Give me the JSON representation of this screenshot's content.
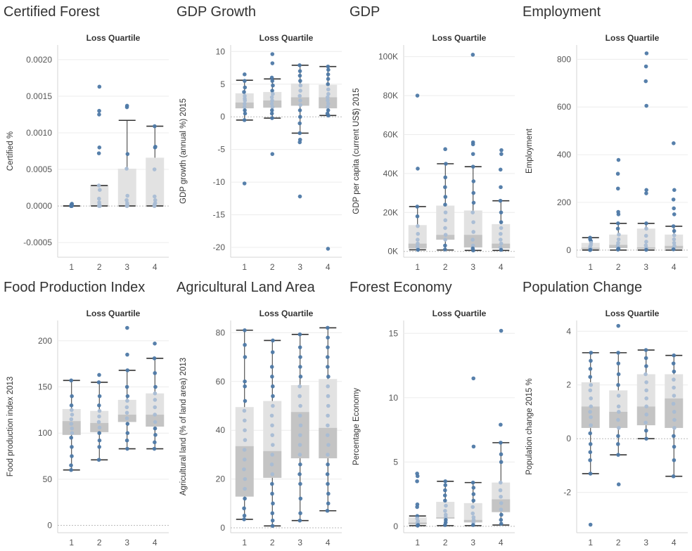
{
  "chart_data": [
    {
      "type": "box",
      "title": "Certified Forest",
      "column_header": "Loss Quartile",
      "xlabel": "",
      "ylabel": "Certified %",
      "categories": [
        "1",
        "2",
        "3",
        "4"
      ],
      "ylim": [
        -0.0007,
        0.0022
      ],
      "yticks": [
        -0.0005,
        0.0,
        0.0005,
        0.001,
        0.0015,
        0.002
      ],
      "ytick_labels": [
        "-0.0005",
        "0.0000",
        "0.0005",
        "0.0010",
        "0.0015",
        "0.0020"
      ],
      "boxes": [
        {
          "whisker_low": 0.0,
          "q1": 0.0,
          "median": 0.0,
          "q3": 0.0,
          "whisker_high": 0.0
        },
        {
          "whisker_low": 0.0,
          "q1": 0.0,
          "median": 0.0,
          "q3": 0.00028,
          "whisker_high": 0.00028
        },
        {
          "whisker_low": 0.0,
          "q1": 0.0,
          "median": 0.0,
          "q3": 0.00051,
          "whisker_high": 0.00117
        },
        {
          "whisker_low": 0.0,
          "q1": 0.0,
          "median": 0.0,
          "q3": 0.00066,
          "whisker_high": 0.00109
        }
      ],
      "points": [
        [
          0.0,
          0.0,
          2e-05,
          3e-05,
          0.0,
          1e-05
        ],
        [
          0.00163,
          0.0013,
          0.00125,
          0.0008,
          0.00072,
          0.00028,
          0.00022,
          0.0001,
          5e-05,
          0.0,
          0.0,
          2e-05
        ],
        [
          0.00137,
          0.00135,
          0.00071,
          0.00051,
          0.00014,
          8e-05,
          4e-05,
          0.0,
          0.0,
          1e-05
        ],
        [
          0.00109,
          0.00081,
          0.0008,
          0.0005,
          0.00013,
          8e-05,
          4e-05,
          0.0,
          0.0,
          2e-05
        ]
      ]
    },
    {
      "type": "box",
      "title": "GDP Growth",
      "column_header": "Loss Quartile",
      "xlabel": "",
      "ylabel": "GDP growth (annual %) 2015",
      "categories": [
        "1",
        "2",
        "3",
        "4"
      ],
      "ylim": [
        -21.5,
        11
      ],
      "yticks": [
        -20,
        -15,
        -10,
        -5,
        0,
        5,
        10
      ],
      "ytick_labels": [
        "-20",
        "-15",
        "-10",
        "-5",
        "0",
        "5",
        "10"
      ],
      "boxes": [
        {
          "whisker_low": -0.5,
          "q1": 1.3,
          "median": 2.2,
          "q3": 3.6,
          "whisker_high": 5.6
        },
        {
          "whisker_low": -0.2,
          "q1": 1.4,
          "median": 2.5,
          "q3": 3.8,
          "whisker_high": 5.8
        },
        {
          "whisker_low": -2.5,
          "q1": 1.7,
          "median": 3.0,
          "q3": 5.1,
          "whisker_high": 7.9
        },
        {
          "whisker_low": 0.2,
          "q1": 1.3,
          "median": 3.0,
          "q3": 4.9,
          "whisker_high": 7.7
        }
      ],
      "points": [
        [
          6.5,
          5.5,
          4.5,
          3.8,
          3.2,
          2.8,
          2.5,
          2.0,
          1.5,
          1.0,
          0.5,
          -0.5,
          -10.2
        ],
        [
          9.6,
          8.2,
          6.0,
          5.5,
          4.8,
          4.0,
          3.5,
          3.0,
          2.5,
          2.0,
          1.5,
          1.0,
          0.5,
          -0.2,
          -5.7
        ],
        [
          7.9,
          7.0,
          6.3,
          5.5,
          4.8,
          4.0,
          3.2,
          2.5,
          1.8,
          1.0,
          0.0,
          -1.0,
          -2.5,
          -3.5,
          -3.9,
          -12.2
        ],
        [
          7.7,
          7.2,
          6.5,
          5.8,
          5.0,
          4.2,
          3.5,
          3.0,
          2.5,
          2.0,
          1.5,
          1.0,
          0.5,
          0.2,
          -20.2
        ]
      ]
    },
    {
      "type": "box",
      "title": "GDP",
      "column_header": "Loss Quartile",
      "xlabel": "",
      "ylabel": "GDP per capita (current US$) 2015",
      "categories": [
        "1",
        "2",
        "3",
        "4"
      ],
      "ylim": [
        -3000,
        106000
      ],
      "yticks": [
        0,
        20000,
        40000,
        60000,
        80000,
        100000
      ],
      "ytick_labels": [
        "0K",
        "20K",
        "40K",
        "60K",
        "80K",
        "100K"
      ],
      "boxes": [
        {
          "whisker_low": 800,
          "q1": 1500,
          "median": 4000,
          "q3": 13500,
          "whisker_high": 23000
        },
        {
          "whisker_low": 700,
          "q1": 6000,
          "median": 8500,
          "q3": 23500,
          "whisker_high": 45000
        },
        {
          "whisker_low": 500,
          "q1": 2000,
          "median": 8500,
          "q3": 21000,
          "whisker_high": 43500
        },
        {
          "whisker_low": 500,
          "q1": 1500,
          "median": 4000,
          "q3": 14000,
          "whisker_high": 26000
        }
      ],
      "points": [
        [
          80000,
          42500,
          23000,
          18000,
          13000,
          9000,
          6000,
          4000,
          2500,
          1500,
          800
        ],
        [
          52500,
          45000,
          38000,
          33000,
          28000,
          24000,
          20000,
          16000,
          12000,
          8500,
          6000,
          3000,
          1000
        ],
        [
          101000,
          56000,
          55000,
          50000,
          43500,
          36000,
          30000,
          25000,
          20000,
          15000,
          10000,
          6000,
          3000,
          1500,
          500
        ],
        [
          52000,
          50000,
          42000,
          33000,
          26000,
          20000,
          15000,
          12000,
          9000,
          6000,
          4000,
          2000,
          800
        ]
      ]
    },
    {
      "type": "box",
      "title": "Employment",
      "column_header": "Loss Quartile",
      "xlabel": "",
      "ylabel": "Employment",
      "categories": [
        "1",
        "2",
        "3",
        "4"
      ],
      "ylim": [
        -30,
        860
      ],
      "yticks": [
        0,
        200,
        400,
        600,
        800
      ],
      "ytick_labels": [
        "0",
        "200",
        "400",
        "600",
        "800"
      ],
      "boxes": [
        {
          "whisker_low": 0,
          "q1": 3,
          "median": 10,
          "q3": 30,
          "whisker_high": 52
        },
        {
          "whisker_low": 0,
          "q1": 8,
          "median": 22,
          "q3": 65,
          "whisker_high": 112
        },
        {
          "whisker_low": 0,
          "q1": 4,
          "median": 12,
          "q3": 90,
          "whisker_high": 112
        },
        {
          "whisker_low": 0,
          "q1": 5,
          "median": 18,
          "q3": 65,
          "whisker_high": 100
        }
      ],
      "points": [
        [
          52,
          45,
          38,
          30,
          22,
          15,
          10,
          6,
          3,
          1,
          0
        ],
        [
          378,
          320,
          258,
          160,
          150,
          112,
          90,
          65,
          45,
          30,
          20,
          12,
          6,
          2
        ],
        [
          825,
          770,
          708,
          605,
          252,
          238,
          112,
          90,
          60,
          35,
          20,
          10,
          4,
          1
        ],
        [
          448,
          252,
          212,
          175,
          150,
          100,
          80,
          62,
          45,
          30,
          18,
          8,
          3
        ]
      ]
    },
    {
      "type": "box",
      "title": "Food Production Index",
      "column_header": "Loss Quartile",
      "xlabel": "",
      "ylabel": "Food production index 2013",
      "categories": [
        "1",
        "2",
        "3",
        "4"
      ],
      "ylim": [
        -8,
        222
      ],
      "yticks": [
        0,
        50,
        100,
        150,
        200
      ],
      "ytick_labels": [
        "0",
        "50",
        "100",
        "150",
        "200"
      ],
      "boxes": [
        {
          "whisker_low": 60,
          "q1": 98,
          "median": 113,
          "q3": 126,
          "whisker_high": 157
        },
        {
          "whisker_low": 71,
          "q1": 101,
          "median": 111,
          "q3": 124,
          "whisker_high": 155
        },
        {
          "whisker_low": 83,
          "q1": 112,
          "median": 120,
          "q3": 136,
          "whisker_high": 168
        },
        {
          "whisker_low": 83,
          "q1": 107,
          "median": 120,
          "q3": 143,
          "whisker_high": 181
        }
      ],
      "points": [
        [
          157,
          140,
          130,
          125,
          120,
          115,
          110,
          105,
          100,
          95,
          85,
          75,
          65,
          60
        ],
        [
          163,
          155,
          140,
          130,
          124,
          118,
          112,
          106,
          100,
          92,
          85,
          71
        ],
        [
          214,
          185,
          168,
          150,
          140,
          135,
          128,
          122,
          116,
          110,
          100,
          92,
          83
        ],
        [
          197,
          181,
          165,
          150,
          143,
          136,
          128,
          120,
          112,
          105,
          98,
          90,
          83
        ]
      ]
    },
    {
      "type": "box",
      "title": "Agricultural Land Area",
      "column_header": "Loss Quartile",
      "xlabel": "",
      "ylabel": "Agricultural land (% of land area) 2013",
      "categories": [
        "1",
        "2",
        "3",
        "4"
      ],
      "ylim": [
        -2,
        85
      ],
      "yticks": [
        0,
        20,
        40,
        60,
        80
      ],
      "ytick_labels": [
        "0",
        "20",
        "40",
        "60",
        "80"
      ],
      "boxes": [
        {
          "whisker_low": 3.5,
          "q1": 12.8,
          "median": 33.5,
          "q3": 49.5,
          "whisker_high": 81
        },
        {
          "whisker_low": 0.8,
          "q1": 20.5,
          "median": 31.5,
          "q3": 52,
          "whisker_high": 76.8
        },
        {
          "whisker_low": 3,
          "q1": 28.5,
          "median": 47.5,
          "q3": 58.5,
          "whisker_high": 79.3
        },
        {
          "whisker_low": 7,
          "q1": 28.5,
          "median": 41,
          "q3": 61,
          "whisker_high": 82
        }
      ],
      "points": [
        [
          81,
          75,
          70,
          60,
          58,
          52,
          48,
          44,
          40,
          36,
          32,
          28,
          24,
          20,
          16,
          12,
          8,
          5,
          3.5
        ],
        [
          76.8,
          72,
          66,
          62,
          58,
          54,
          50,
          46,
          42,
          38,
          34,
          30,
          26,
          22,
          18,
          14,
          10,
          6,
          3,
          0.8
        ],
        [
          79.3,
          74,
          70,
          66,
          62,
          58,
          54,
          50,
          46,
          42,
          38,
          34,
          30,
          26,
          22,
          18,
          12,
          6,
          3
        ],
        [
          82,
          78,
          74,
          70,
          66,
          62,
          58,
          54,
          50,
          46,
          42,
          38,
          34,
          30,
          26,
          22,
          18,
          14,
          10,
          7
        ]
      ]
    },
    {
      "type": "box",
      "title": "Forest Economy",
      "column_header": "Loss Quartile",
      "xlabel": "",
      "ylabel": "Percentage Economy",
      "categories": [
        "1",
        "2",
        "3",
        "4"
      ],
      "ylim": [
        -0.5,
        16
      ],
      "yticks": [
        0,
        5,
        10,
        15
      ],
      "ytick_labels": [
        "0",
        "5",
        "10",
        "15"
      ],
      "boxes": [
        {
          "whisker_low": 0.05,
          "q1": 0.15,
          "median": 0.3,
          "q3": 0.7,
          "whisker_high": 0.8
        },
        {
          "whisker_low": 0.05,
          "q1": 0.6,
          "median": 0.7,
          "q3": 1.9,
          "whisker_high": 3.5
        },
        {
          "whisker_low": 0.05,
          "q1": 0.3,
          "median": 0.5,
          "q3": 1.8,
          "whisker_high": 3.4
        },
        {
          "whisker_low": 0.1,
          "q1": 1.1,
          "median": 2.1,
          "q3": 3.4,
          "whisker_high": 6.5
        }
      ],
      "points": [
        [
          4.1,
          3.9,
          3.5,
          1.7,
          1.5,
          0.8,
          0.6,
          0.4,
          0.3,
          0.2,
          0.1,
          0.05
        ],
        [
          3.5,
          3.2,
          2.8,
          2.4,
          2.0,
          1.6,
          1.2,
          0.9,
          0.7,
          0.5,
          0.3,
          0.1
        ],
        [
          11.5,
          6.2,
          3.4,
          3.0,
          2.5,
          2.0,
          1.5,
          1.0,
          0.7,
          0.5,
          0.3,
          0.1
        ],
        [
          15.2,
          7.9,
          6.5,
          5.6,
          5.0,
          3.4,
          2.8,
          2.3,
          1.8,
          1.3,
          0.9,
          0.5,
          0.2
        ]
      ]
    },
    {
      "type": "box",
      "title": "Population Change",
      "column_header": "Loss Quartile",
      "xlabel": "",
      "ylabel": "Population change 2015 %",
      "categories": [
        "1",
        "2",
        "3",
        "4"
      ],
      "ylim": [
        -3.5,
        4.4
      ],
      "yticks": [
        -2,
        0,
        2,
        4
      ],
      "ytick_labels": [
        "-2",
        "0",
        "2",
        "4"
      ],
      "boxes": [
        {
          "whisker_low": -1.3,
          "q1": 0.4,
          "median": 1.2,
          "q3": 2.1,
          "whisker_high": 3.2
        },
        {
          "whisker_low": -0.6,
          "q1": 0.4,
          "median": 1.0,
          "q3": 1.8,
          "whisker_high": 3.2
        },
        {
          "whisker_low": 0.0,
          "q1": 0.5,
          "median": 1.2,
          "q3": 2.4,
          "whisker_high": 3.3
        },
        {
          "whisker_low": -1.4,
          "q1": 0.4,
          "median": 1.5,
          "q3": 2.4,
          "whisker_high": 3.1
        }
      ],
      "points": [
        [
          3.2,
          2.9,
          2.6,
          2.3,
          2.0,
          1.8,
          1.5,
          1.2,
          1.0,
          0.8,
          0.5,
          0.2,
          -0.2,
          -0.5,
          -0.8,
          -1.3,
          -3.2
        ],
        [
          4.2,
          3.2,
          2.8,
          2.4,
          2.0,
          1.6,
          1.2,
          1.0,
          0.7,
          0.4,
          0.1,
          -0.2,
          -0.6,
          -1.7
        ],
        [
          3.3,
          3.0,
          2.7,
          2.4,
          2.1,
          1.8,
          1.5,
          1.2,
          0.9,
          0.6,
          0.3,
          0.0
        ],
        [
          3.1,
          2.8,
          2.5,
          2.2,
          1.9,
          1.6,
          1.3,
          1.0,
          0.7,
          0.4,
          0.1,
          -0.3,
          -0.8,
          -1.4
        ]
      ]
    }
  ],
  "colors": {
    "point": "#4e79a7",
    "point_light": "#a8bcd4",
    "box_upper": "#e2e2e2",
    "box_lower": "#c4c4c4",
    "whisker": "#333333",
    "grid": "#ececec",
    "zero_line": "#bbbbbb",
    "text": "#333333"
  }
}
